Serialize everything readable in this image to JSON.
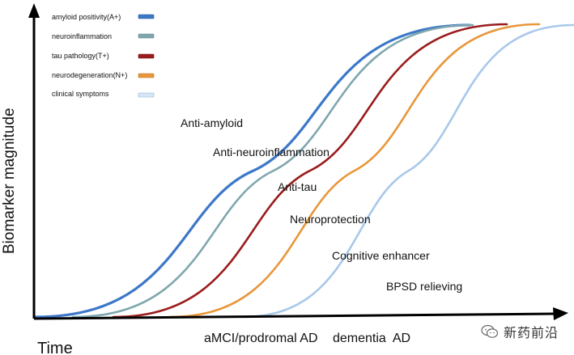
{
  "diagram": {
    "y_axis_label": "Biomarker magnitude",
    "x_axis_label": "Time",
    "stages": [
      "aMCI/prodromal AD",
      "dementia  AD"
    ],
    "legend": [
      {
        "label": "amyloid positivity(A+)",
        "color": "#3c78c8"
      },
      {
        "label": "neuroinflammation",
        "color": "#7fa7ad"
      },
      {
        "label": "tau pathology(T+)",
        "color": "#9b1c1c"
      },
      {
        "label": "neurodegeneration(N+)",
        "color": "#e8973a"
      },
      {
        "label": "clinical symptoms",
        "color": "#a9c8ea"
      }
    ],
    "interventions": [
      "Anti-amyloid",
      "Anti-neuroinflammation",
      "Anti-tau",
      "Neuroprotection",
      "Cognitive enhancer",
      "BPSD relieving"
    ]
  },
  "watermark": {
    "text": "新药前沿",
    "icon": "wechat-icon"
  }
}
